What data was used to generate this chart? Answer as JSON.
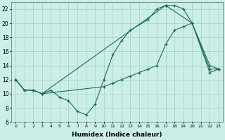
{
  "xlabel": "Humidex (Indice chaleur)",
  "bg_color": "#cceee8",
  "line_color": "#1a6b5a",
  "grid_color": "#aad4cc",
  "xlim": [
    -0.5,
    23.5
  ],
  "ylim": [
    6,
    23
  ],
  "xtick_labels": [
    "0",
    "1",
    "2",
    "3",
    "4",
    "5",
    "6",
    "7",
    "8",
    "9",
    "10",
    "11",
    "12",
    "13",
    "14",
    "15",
    "16",
    "17",
    "18",
    "19",
    "20",
    "21",
    "22",
    "23"
  ],
  "ytick_values": [
    6,
    8,
    10,
    12,
    14,
    16,
    18,
    20,
    22
  ],
  "line1_x": [
    0,
    1,
    2,
    3,
    4,
    5,
    6,
    7,
    8,
    9,
    10,
    11,
    12,
    13,
    15,
    16,
    17,
    20,
    22,
    23
  ],
  "line1_y": [
    12,
    10.5,
    10.5,
    10,
    10.5,
    9.5,
    9,
    7.5,
    7,
    8.5,
    12,
    15.5,
    17.5,
    19,
    20.5,
    22,
    22.5,
    20,
    14,
    13.5
  ],
  "line2_x": [
    0,
    1,
    2,
    3,
    17,
    18,
    19,
    20,
    22,
    23
  ],
  "line2_y": [
    12,
    10.5,
    10.5,
    10,
    22.5,
    22.5,
    22,
    20,
    13.5,
    13.5
  ],
  "line3_x": [
    0,
    1,
    2,
    3,
    10,
    11,
    12,
    13,
    14,
    15,
    16,
    17,
    18,
    19,
    20,
    22,
    23
  ],
  "line3_y": [
    12,
    10.5,
    10.5,
    10,
    11,
    11.5,
    12,
    12.5,
    13,
    13.5,
    14,
    17,
    19,
    19.5,
    20,
    13,
    13.5
  ]
}
